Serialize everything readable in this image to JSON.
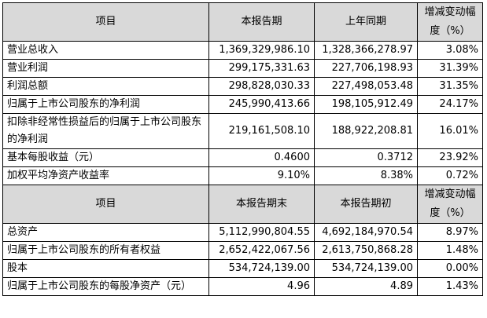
{
  "table1": {
    "headers": [
      "项目",
      "本报告期",
      "上年同期",
      "增减变动幅度（%）"
    ],
    "rows": [
      [
        "营业总收入",
        "1,369,329,986.10",
        "1,328,366,278.97",
        "3.08%"
      ],
      [
        "营业利润",
        "299,175,331.63",
        "227,706,198.93",
        "31.39%"
      ],
      [
        "利润总额",
        "298,828,030.33",
        "227,498,053.48",
        "31.35%"
      ],
      [
        "归属于上市公司股东的净利润",
        "245,990,413.66",
        "198,105,912.49",
        "24.17%"
      ],
      [
        "扣除非经常性损益后的归属于上市公司股东的净利润",
        "219,161,508.10",
        "188,922,208.81",
        "16.01%"
      ],
      [
        "基本每股收益（元）",
        "0.4600",
        "0.3712",
        "23.92%"
      ],
      [
        "加权平均净资产收益率",
        "9.10%",
        "8.38%",
        "0.72%"
      ]
    ]
  },
  "table2": {
    "headers": [
      "项目",
      "本报告期末",
      "本报告期初",
      "增减变动幅度（%）"
    ],
    "rows": [
      [
        "总资产",
        "5,112,990,804.55",
        "4,692,184,970.54",
        "8.97%"
      ],
      [
        "归属于上市公司股东的所有者权益",
        "2,652,422,067.56",
        "2,613,750,868.28",
        "1.48%"
      ],
      [
        "股本",
        "534,724,139.00",
        "534,724,139.00",
        "0.00%"
      ],
      [
        "归属于上市公司股东的每股净资产（元）",
        "4.96",
        "4.89",
        "1.43%"
      ]
    ]
  }
}
